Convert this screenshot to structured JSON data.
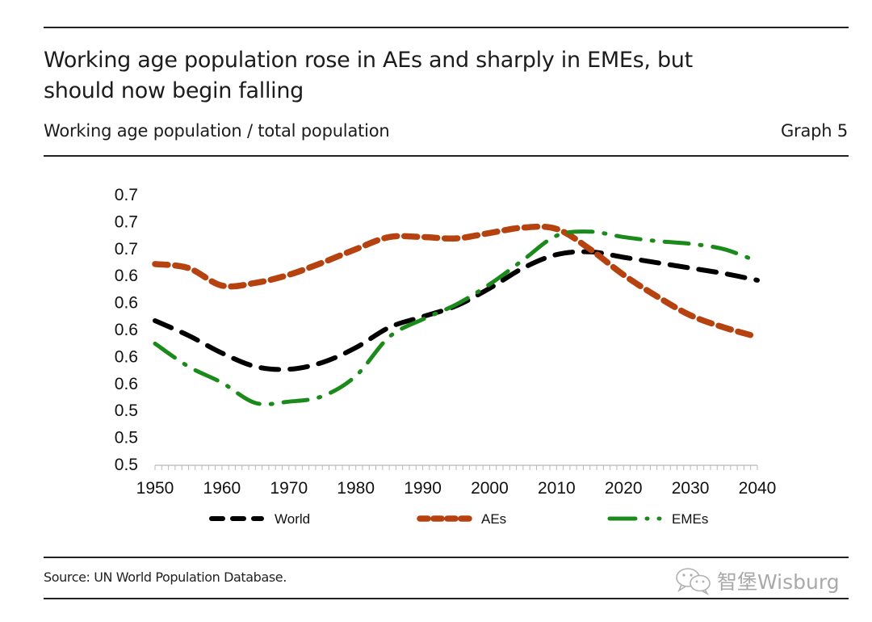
{
  "header": {
    "title_line1": "Working age population rose in AEs and sharply in EMEs, but",
    "title_line2": "should now begin falling",
    "subtitle": "Working age population / total population",
    "graph_number": "Graph 5"
  },
  "footer": {
    "source": "Source: UN World Population Database.",
    "watermark_text": "智堡Wisburg",
    "watermark_icon": "wechat-icon"
  },
  "chart_data": {
    "type": "line",
    "title": "Working age population rose in AEs and sharply in EMEs, but should now begin falling",
    "subtitle": "Working age population / total population",
    "xlabel": "",
    "ylabel": "",
    "xlim": [
      1950,
      2040
    ],
    "ylim": [
      0.5,
      0.7
    ],
    "grid": false,
    "legend_position": "bottom",
    "x_ticks": [
      1950,
      1960,
      1970,
      1980,
      1990,
      2000,
      2010,
      2020,
      2030,
      2040
    ],
    "x_tick_labels": [
      "1950",
      "1960",
      "1970",
      "1980",
      "1990",
      "2000",
      "2010",
      "2020",
      "2030",
      "2040"
    ],
    "y_ticks": [
      0.7,
      0.68,
      0.66,
      0.64,
      0.62,
      0.6,
      0.58,
      0.56,
      0.54,
      0.52,
      0.5
    ],
    "y_tick_labels": [
      "0.7",
      "0.7",
      "0.7",
      "0.6",
      "0.6",
      "0.6",
      "0.6",
      "0.6",
      "0.5",
      "0.5",
      "0.5"
    ],
    "x": [
      1950,
      1955,
      1960,
      1965,
      1970,
      1975,
      1980,
      1985,
      1990,
      1995,
      2000,
      2005,
      2010,
      2015,
      2020,
      2025,
      2030,
      2035,
      2040
    ],
    "series": [
      {
        "name": "World",
        "color": "#000000",
        "style": "dash",
        "values": [
          0.606,
          0.595,
          0.582,
          0.572,
          0.57,
          0.575,
          0.586,
          0.601,
          0.609,
          0.617,
          0.63,
          0.645,
          0.655,
          0.657,
          0.653,
          0.649,
          0.645,
          0.641,
          0.636
        ]
      },
      {
        "name": "AEs",
        "color": "#b5420f",
        "style": "short-dash",
        "values": [
          0.648,
          0.645,
          0.632,
          0.634,
          0.64,
          0.649,
          0.659,
          0.668,
          0.668,
          0.667,
          0.671,
          0.675,
          0.674,
          0.659,
          0.64,
          0.624,
          0.61,
          0.601,
          0.594
        ]
      },
      {
        "name": "EMEs",
        "color": "#1a8a1a",
        "style": "dash-dot",
        "values": [
          0.589,
          0.572,
          0.56,
          0.545,
          0.546,
          0.55,
          0.565,
          0.594,
          0.607,
          0.618,
          0.633,
          0.651,
          0.669,
          0.672,
          0.668,
          0.665,
          0.663,
          0.659,
          0.65
        ]
      }
    ]
  }
}
